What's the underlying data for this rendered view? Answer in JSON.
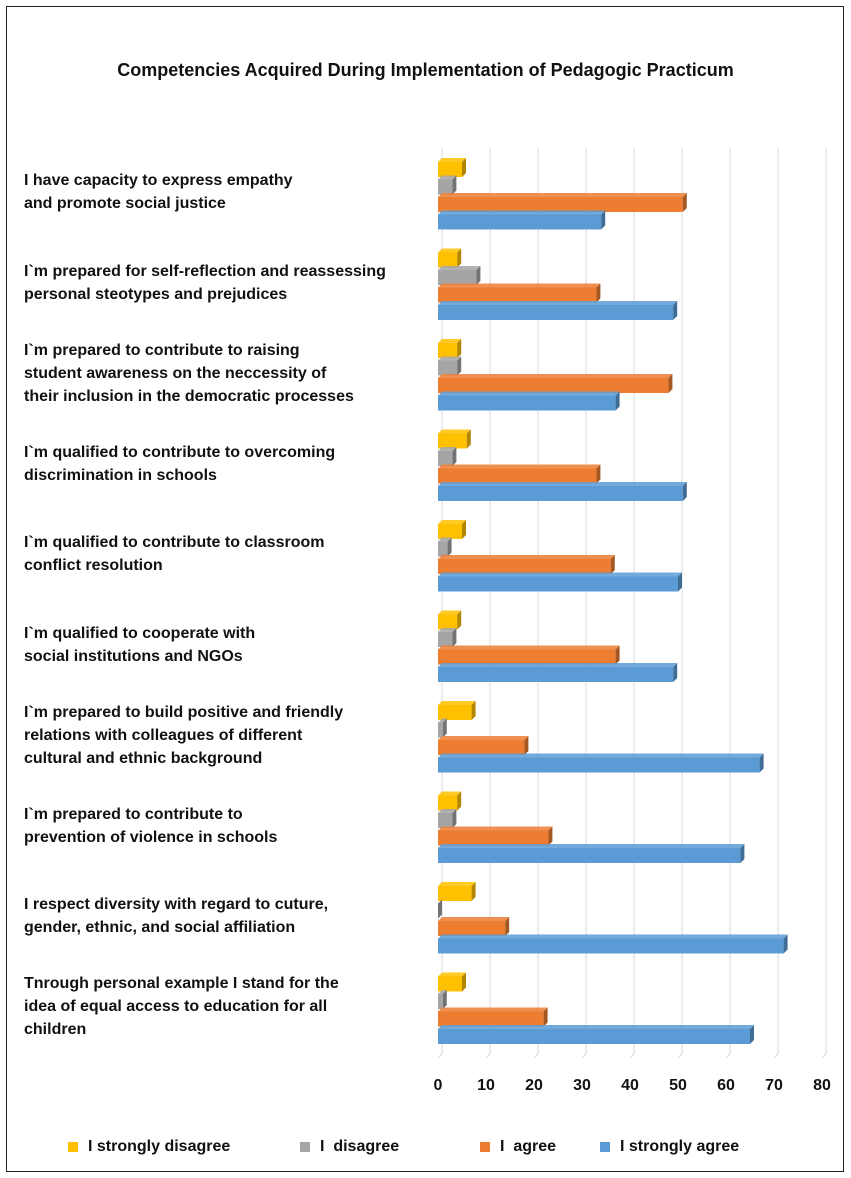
{
  "chart_data": {
    "type": "bar",
    "orientation": "horizontal",
    "title": "Competencies Acquired During Implementation of Pedagogic Practicum",
    "categories": [
      "I have capacity to express empathy\nand promote social justice",
      "I`m prepared for self-reflection and reassessing\npersonal steotypes and prejudices",
      "I`m prepared to contribute to raising\nstudent awareness on the neccessity of\ntheir inclusion in the democratic processes",
      "I`m qualified to contribute to overcoming\ndiscrimination in schools",
      "I`m qualified to contribute to classroom\nconflict resolution",
      "I`m qualified to cooperate with\nsocial institutions and NGOs",
      "I`m prepared to build positive and friendly\nrelations with colleagues of different\ncultural and ethnic background",
      "I`m prepared to contribute to\nprevention of violence in schools",
      "I respect diversity with regard to cuture,\ngender, ethnic, and social affiliation",
      "Tnrough personal example I stand for the\nidea of equal access to education for all\nchildren"
    ],
    "series": [
      {
        "name": "I strongly disagree",
        "color": "#FFC000",
        "values": [
          5,
          4,
          4,
          6,
          5,
          4,
          7,
          4,
          7,
          5
        ]
      },
      {
        "name": "I  disagree",
        "color": "#A5A5A5",
        "values": [
          3,
          8,
          4,
          3,
          2,
          3,
          1,
          3,
          0,
          1
        ]
      },
      {
        "name": "I  agree",
        "color": "#ED7D31",
        "values": [
          51,
          33,
          48,
          33,
          36,
          37,
          18,
          23,
          14,
          22
        ]
      },
      {
        "name": "I strongly agree",
        "color": "#5B9BD5",
        "values": [
          34,
          49,
          37,
          51,
          50,
          49,
          67,
          63,
          72,
          65
        ]
      }
    ],
    "xticks": [
      0,
      10,
      20,
      30,
      40,
      50,
      60,
      70,
      80
    ],
    "xlim": [
      0,
      80
    ],
    "grid": true,
    "legend_position": "bottom"
  }
}
